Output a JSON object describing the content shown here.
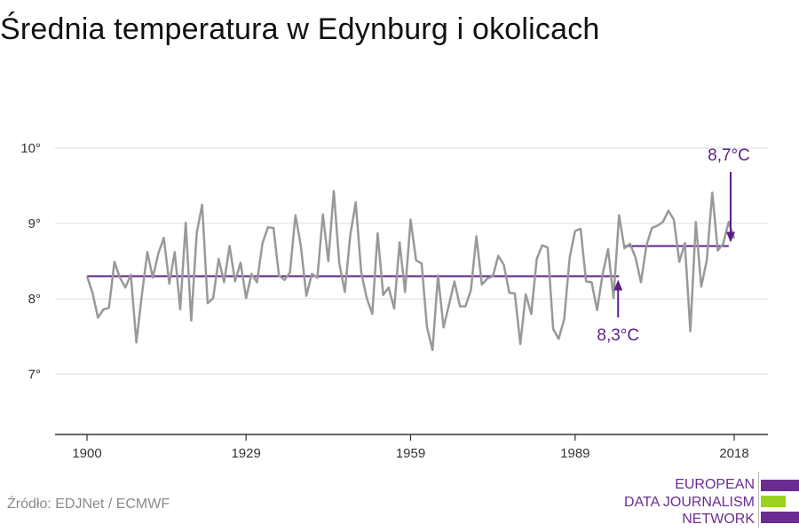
{
  "title": "Średnia temperatura w Edynburg i okolicach",
  "source": "Źródło: EDJNet / ECMWF",
  "logo": {
    "lines": [
      "EUROPEAN",
      "DATA JOURNALISM",
      "NETWORK"
    ],
    "colors": {
      "purple": "#6b2c91",
      "green": "#9bd21f"
    }
  },
  "colors": {
    "series": "#999999",
    "reference": "#5c1f8a",
    "annotation": "#5c1f8a",
    "grid": "#dddddd",
    "axis": "#333333"
  },
  "chart_data": {
    "type": "line",
    "title": "Średnia temperatura w Edynburg i okolicach",
    "xlabel": "",
    "ylabel": "",
    "xlim": [
      1900,
      2018
    ],
    "ylim": [
      7,
      10
    ],
    "x_ticks": [
      1900,
      1929,
      1959,
      1989,
      2018
    ],
    "x_tick_labels": [
      "1900",
      "1929",
      "1959",
      "1989",
      "2018"
    ],
    "y_ticks": [
      7,
      8,
      9,
      10
    ],
    "y_tick_labels": [
      "7°",
      "8°",
      "9°",
      "10°"
    ],
    "grid": true,
    "x": [
      1900,
      1901,
      1902,
      1903,
      1904,
      1905,
      1906,
      1907,
      1908,
      1909,
      1910,
      1911,
      1912,
      1913,
      1914,
      1915,
      1916,
      1917,
      1918,
      1919,
      1920,
      1921,
      1922,
      1923,
      1924,
      1925,
      1926,
      1927,
      1928,
      1929,
      1930,
      1931,
      1932,
      1933,
      1934,
      1935,
      1936,
      1937,
      1938,
      1939,
      1940,
      1941,
      1942,
      1943,
      1944,
      1945,
      1946,
      1947,
      1948,
      1949,
      1950,
      1951,
      1952,
      1953,
      1954,
      1955,
      1956,
      1957,
      1958,
      1959,
      1960,
      1961,
      1962,
      1963,
      1964,
      1965,
      1966,
      1967,
      1968,
      1969,
      1970,
      1971,
      1972,
      1973,
      1974,
      1975,
      1976,
      1977,
      1978,
      1979,
      1980,
      1981,
      1982,
      1983,
      1984,
      1985,
      1986,
      1987,
      1988,
      1989,
      1990,
      1991,
      1992,
      1993,
      1994,
      1995,
      1996,
      1997,
      1998,
      1999,
      2000,
      2001,
      2002,
      2003,
      2004,
      2005,
      2006,
      2007,
      2008,
      2009,
      2010,
      2011,
      2012,
      2013,
      2014,
      2015,
      2016,
      2017,
      2018
    ],
    "series": [
      {
        "values": [
          8.3,
          8.08,
          7.75,
          7.86,
          7.88,
          8.49,
          8.28,
          8.15,
          8.32,
          7.42,
          8.05,
          8.62,
          8.28,
          8.6,
          8.81,
          8.2,
          8.62,
          7.86,
          9.01,
          7.71,
          8.87,
          9.25,
          7.94,
          8.01,
          8.53,
          8.22,
          8.7,
          8.23,
          8.48,
          8.01,
          8.33,
          8.22,
          8.74,
          8.95,
          8.94,
          8.31,
          8.25,
          8.35,
          9.11,
          8.7,
          8.04,
          8.33,
          8.28,
          9.12,
          8.5,
          9.43,
          8.47,
          8.09,
          8.84,
          9.28,
          8.35,
          8.01,
          7.8,
          8.87,
          8.05,
          8.15,
          7.87,
          8.75,
          8.09,
          9.05,
          8.51,
          8.47,
          7.62,
          7.32,
          8.31,
          7.62,
          7.92,
          8.23,
          7.9,
          7.9,
          8.12,
          8.83,
          8.19,
          8.27,
          8.3,
          8.57,
          8.45,
          8.08,
          8.07,
          7.4,
          8.06,
          7.8,
          8.53,
          8.71,
          8.68,
          7.6,
          7.47,
          7.73,
          8.55,
          8.9,
          8.93,
          8.23,
          8.22,
          7.85,
          8.32,
          8.66,
          8.01,
          9.11,
          8.67,
          8.73,
          8.55,
          8.22,
          8.71,
          8.94,
          8.97,
          9.02,
          9.17,
          9.05,
          8.49,
          8.74,
          7.57,
          9.02,
          8.16,
          8.51,
          9.41,
          8.64,
          8.73,
          9.02,
          8.8
        ]
      }
    ],
    "reference_lines": [
      {
        "label": "8,3°C",
        "value": 8.3,
        "from": 1900,
        "to": 1997
      },
      {
        "label": "8,7°C",
        "value": 8.7,
        "from": 1998,
        "to": 2017
      }
    ]
  }
}
